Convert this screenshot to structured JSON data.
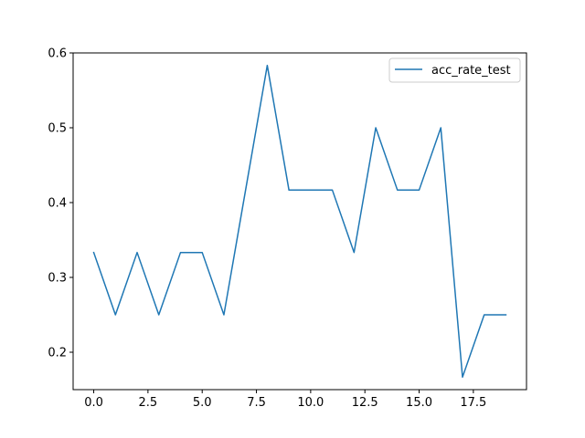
{
  "chart_data": {
    "type": "line",
    "title": "",
    "xlabel": "",
    "ylabel": "",
    "xlim": [
      -0.95,
      19.95
    ],
    "ylim": [
      0.15,
      0.6
    ],
    "grid": false,
    "legend_position": "top-right",
    "x_ticks": [
      0,
      2.5,
      5,
      7.5,
      10,
      12.5,
      15,
      17.5
    ],
    "x_tick_labels": [
      "0.0",
      "2.5",
      "5.0",
      "7.5",
      "10.0",
      "12.5",
      "15.0",
      "17.5"
    ],
    "y_ticks": [
      0.2,
      0.3,
      0.4,
      0.5,
      0.6
    ],
    "y_tick_labels": [
      "0.2",
      "0.3",
      "0.4",
      "0.5",
      "0.6"
    ],
    "series": [
      {
        "name": "acc_rate_test",
        "color": "#1f77b4",
        "x": [
          0,
          1,
          2,
          3,
          4,
          5,
          6,
          7,
          8,
          9,
          10,
          11,
          12,
          13,
          14,
          15,
          16,
          17,
          18,
          19
        ],
        "values": [
          0.3333,
          0.25,
          0.3333,
          0.25,
          0.3333,
          0.3333,
          0.25,
          0.4167,
          0.5833,
          0.4167,
          0.4167,
          0.4167,
          0.3333,
          0.5,
          0.4167,
          0.4167,
          0.5,
          0.1667,
          0.25,
          0.25
        ]
      }
    ]
  }
}
